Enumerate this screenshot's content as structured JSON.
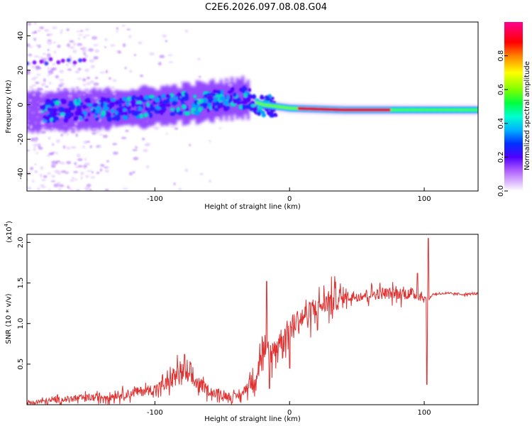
{
  "title": "C2E6.2026.097.08.08.G04",
  "chart_data": [
    {
      "type": "heatmap",
      "xlabel": "Height of straight line (km)",
      "ylabel": "Frequency (Hz)",
      "xlim": [
        -195,
        140
      ],
      "ylim": [
        -50,
        48
      ],
      "x_ticks": [
        -100,
        0,
        100
      ],
      "y_ticks": [
        -40,
        -20,
        0,
        20,
        40
      ],
      "colorbar": {
        "label": "Normalized spectral amplitude",
        "range": [
          0,
          1
        ],
        "ticks": [
          "0.0",
          "0.2",
          "0.4",
          "0.6",
          "0.8"
        ],
        "colormap": [
          "#ffffff",
          "#d9b3ff",
          "#8000ff",
          "#0000ff",
          "#00d4ff",
          "#00ff80",
          "#80ff00",
          "#ffff00",
          "#ff8000",
          "#ff0000",
          "#ff00c0"
        ]
      },
      "ridge": [
        {
          "x": -195,
          "y": -4
        },
        {
          "x": -150,
          "y": -3
        },
        {
          "x": -100,
          "y": -1
        },
        {
          "x": -60,
          "y": 2
        },
        {
          "x": -35,
          "y": 4
        },
        {
          "x": -20,
          "y": 0
        },
        {
          "x": 0,
          "y": -2
        },
        {
          "x": 40,
          "y": -3
        },
        {
          "x": 100,
          "y": -3
        },
        {
          "x": 140,
          "y": -3
        }
      ],
      "spot_band": {
        "y": 25,
        "x_from": -195,
        "x_to": -150
      }
    },
    {
      "type": "line",
      "xlabel": "Height of straight line (km)",
      "ylabel": "SNR (10 * v/v)",
      "y_scale_note": "(x10",
      "y_scale_exp": "4",
      "xlim": [
        -195,
        140
      ],
      "ylim": [
        0,
        2.1
      ],
      "x_ticks": [
        -100,
        0,
        100
      ],
      "y_ticks": [
        "0.5",
        "1.0",
        "1.5",
        "2.0"
      ],
      "color": "#e03030",
      "x": [
        -195,
        -180,
        -160,
        -140,
        -120,
        -100,
        -90,
        -85,
        -80,
        -75,
        -70,
        -60,
        -50,
        -40,
        -35,
        -30,
        -25,
        -20,
        -15,
        -10,
        -5,
        0,
        5,
        10,
        15,
        20,
        25,
        30,
        40,
        50,
        60,
        70,
        80,
        90,
        98,
        102,
        104,
        106,
        110,
        120,
        130,
        140
      ],
      "y": [
        0.02,
        0.05,
        0.08,
        0.1,
        0.14,
        0.2,
        0.28,
        0.38,
        0.42,
        0.35,
        0.3,
        0.18,
        0.12,
        0.1,
        0.14,
        0.28,
        0.4,
        0.7,
        0.6,
        0.75,
        0.85,
        0.95,
        1.05,
        1.1,
        1.15,
        1.2,
        1.25,
        1.3,
        1.33,
        1.35,
        1.37,
        1.38,
        1.38,
        1.37,
        1.36,
        1.3,
        1.3,
        1.36,
        1.37,
        1.37,
        1.36,
        1.37
      ],
      "spikes": [
        {
          "x": -17,
          "y": 1.52
        },
        {
          "x": -15,
          "y": 0.2
        },
        {
          "x": 103,
          "y": 2.05
        },
        {
          "x": 102,
          "y": 0.25
        },
        {
          "x": 95,
          "y": 1.62
        },
        {
          "x": -78,
          "y": 0.62
        },
        {
          "x": 0,
          "y": 0.45
        }
      ]
    }
  ]
}
